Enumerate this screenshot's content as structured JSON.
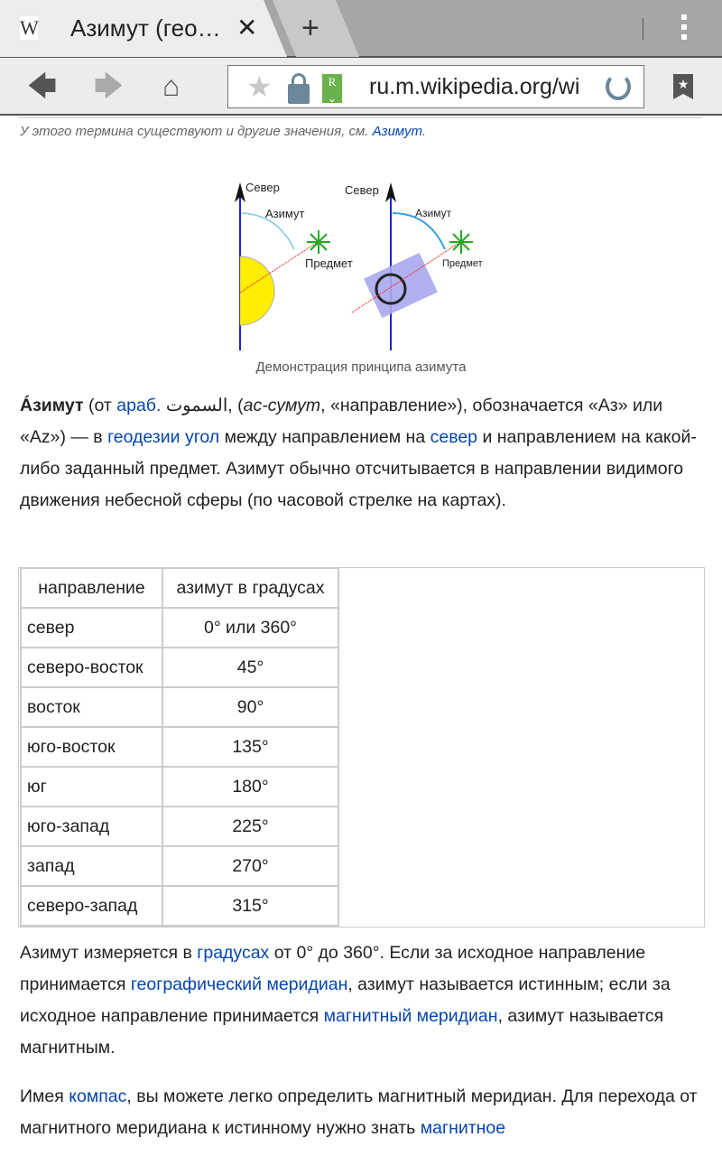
{
  "browser": {
    "tab_title": "Азимут (гео…",
    "tab_close": "✕",
    "new_tab": "+",
    "url": "ru.m.wikipedia.org/wi",
    "reader_icon_letter": "R"
  },
  "article": {
    "hatnote_prefix": "У этого термина существуют и другие значения, см. ",
    "hatnote_link": "Азимут",
    "hatnote_suffix": ".",
    "figure": {
      "north": "Север",
      "azimuth": "Азимут",
      "object": "Предмет",
      "caption": "Демонстрация принципа азимута"
    },
    "p1": {
      "bold": "Áзимут",
      "t1": " (от ",
      "l1": "араб.",
      "t2": " السموت, (",
      "i1": "ас-сумут",
      "t3": ", «направление»), обозначается «Аз» или «Az») — в ",
      "l2": "геодезии",
      "t4": " ",
      "l3": "угол",
      "t5": " между направлением на ",
      "l4": "север",
      "t6": " и направлением на какой-либо заданный предмет. Азимут обычно отсчитывается в направлении видимого движения небесной сферы (по часовой стрелке на картах)."
    },
    "table": {
      "headers": [
        "направление",
        "азимут в градусах"
      ],
      "rows": [
        [
          "север",
          "0° или 360°"
        ],
        [
          "северо-восток",
          "45°"
        ],
        [
          "восток",
          "90°"
        ],
        [
          "юго-восток",
          "135°"
        ],
        [
          "юг",
          "180°"
        ],
        [
          "юго-запад",
          "225°"
        ],
        [
          "запад",
          "270°"
        ],
        [
          "северо-запад",
          "315°"
        ]
      ]
    },
    "p2": {
      "t1": "Азимут измеряется в ",
      "l1": "градусах",
      "t2": " от 0° до 360°. Если за исходное направление принимается ",
      "l2": "географический меридиан",
      "t3": ", азимут называется истинным; если за исходное направление принимается ",
      "l3": "магнитный меридиан",
      "t4": ", азимут называется магнитным."
    },
    "p3": {
      "t1": "Имея ",
      "l1": "компас",
      "t2": ", вы можете легко определить магнитный меридиан. Для перехода от магнитного меридиана к истинному нужно знать ",
      "l2": "магнитное"
    }
  }
}
